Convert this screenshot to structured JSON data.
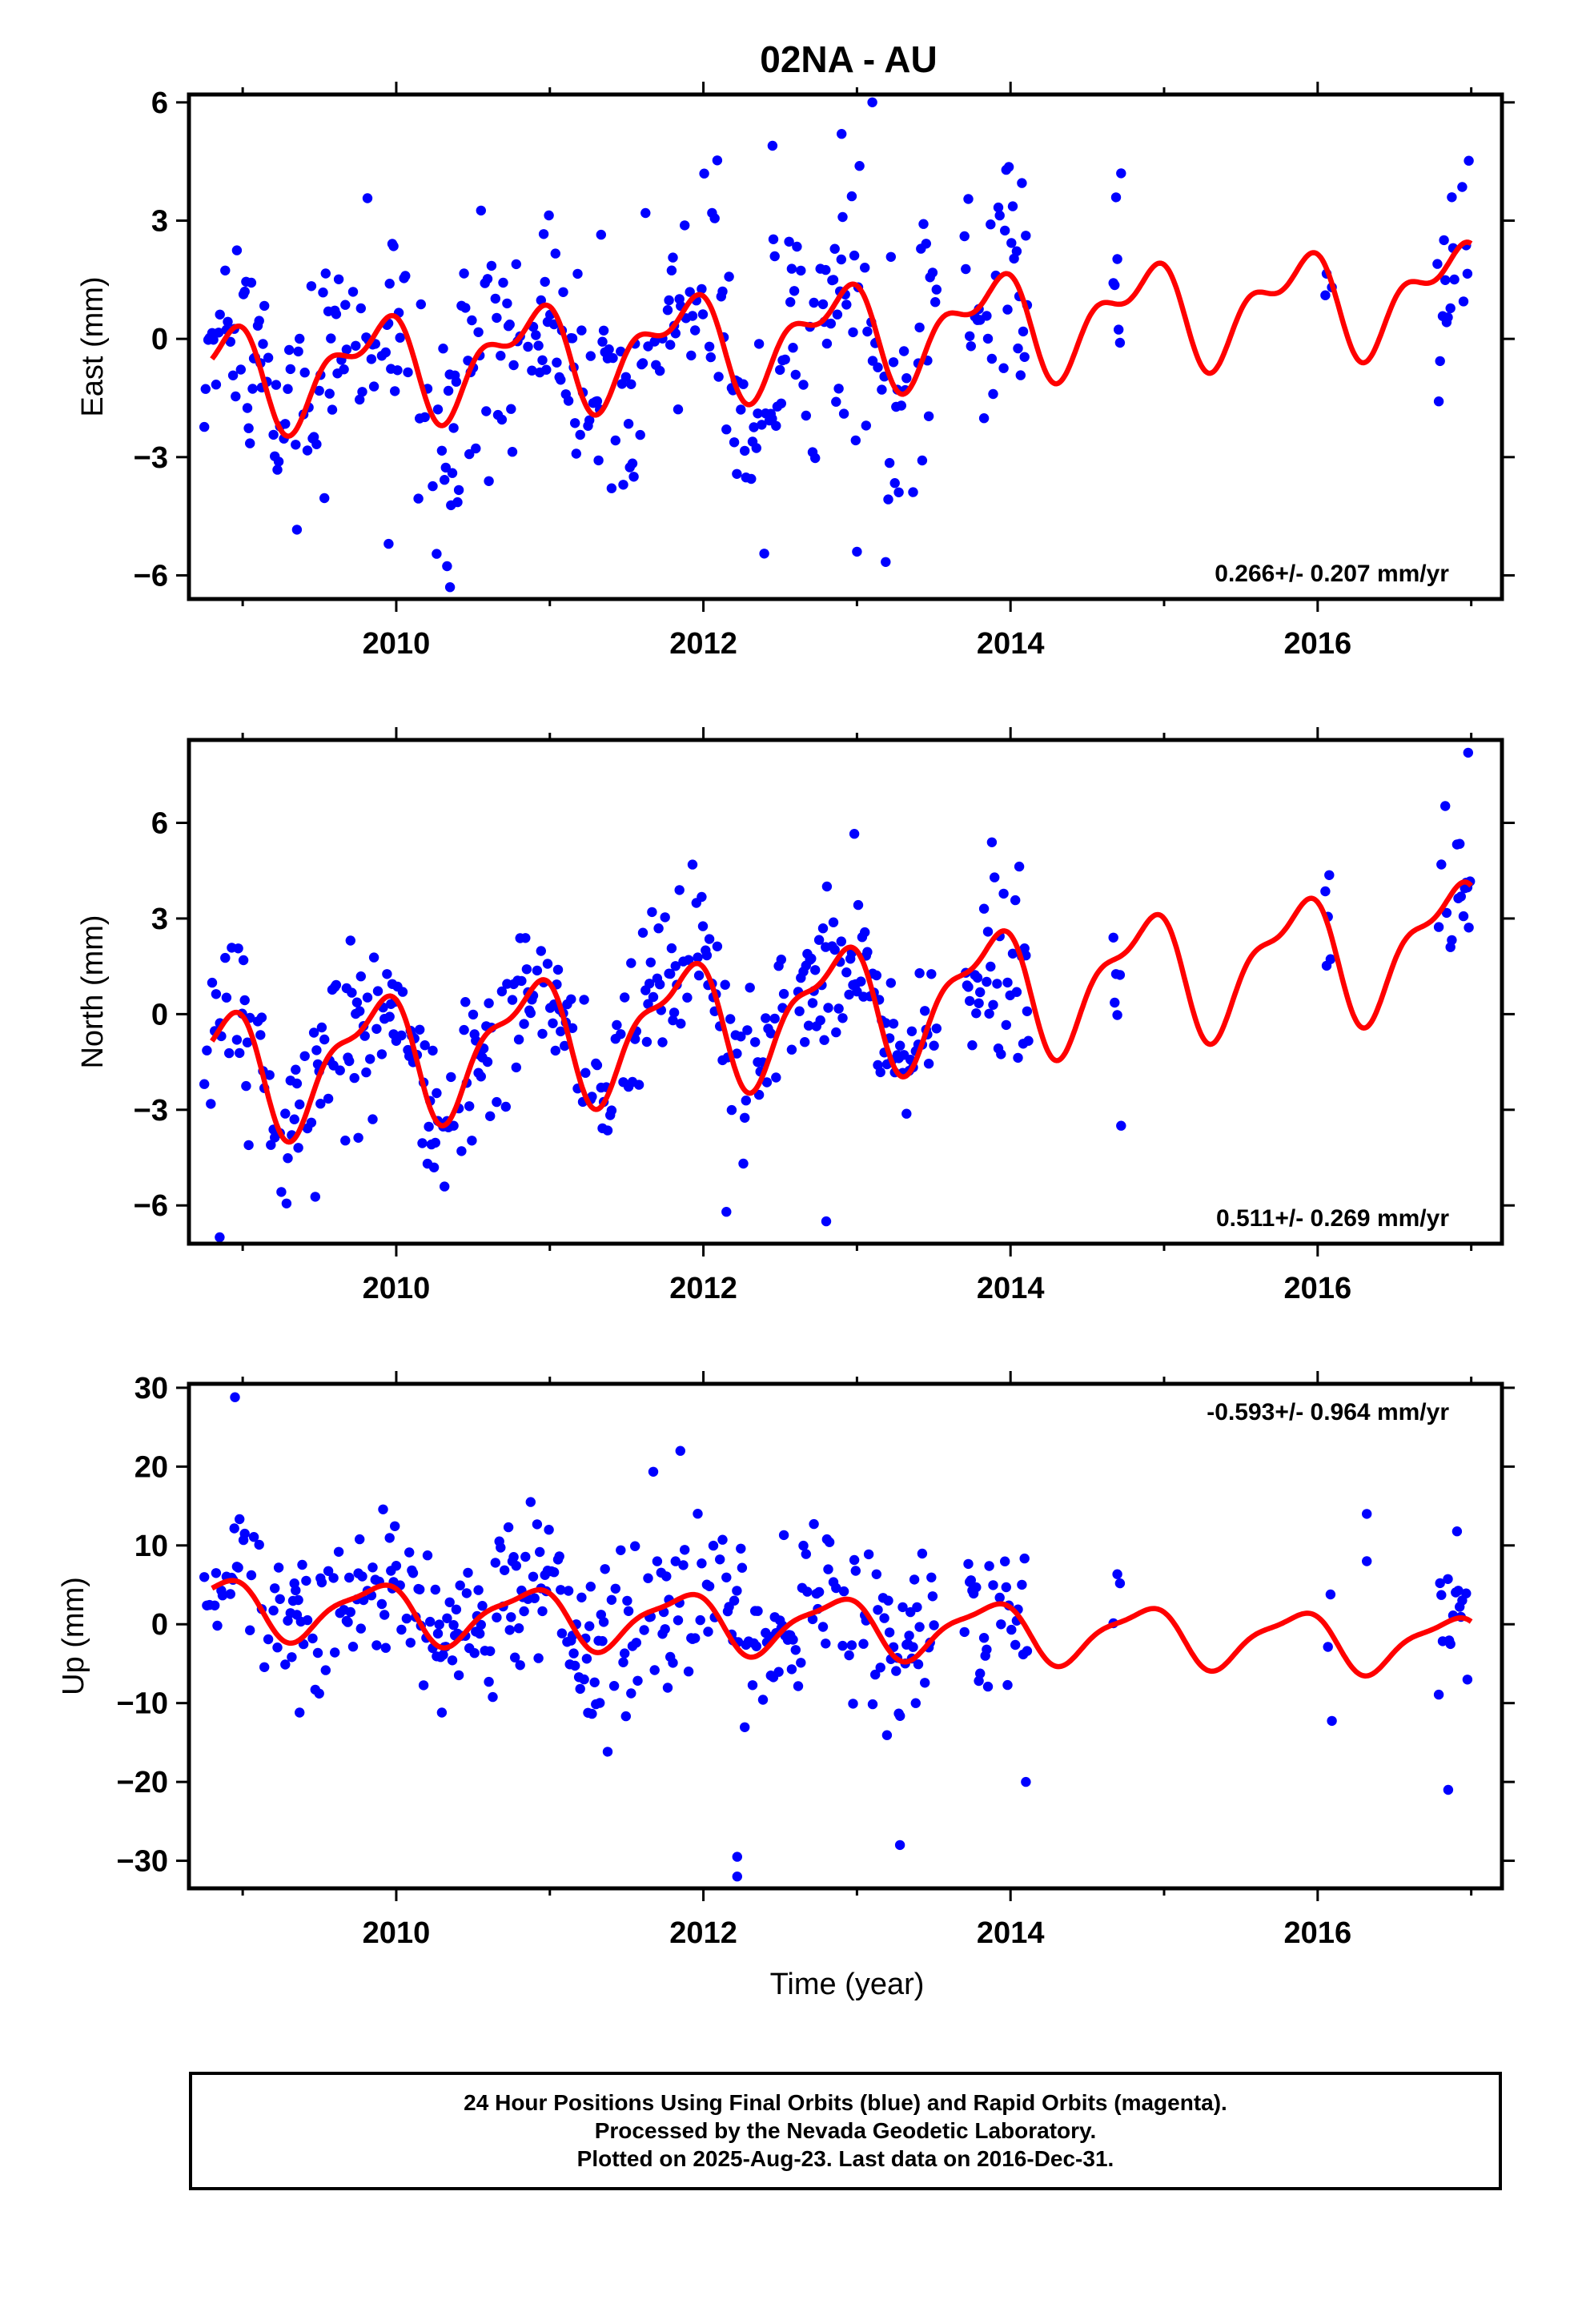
{
  "title": "02NA - AU",
  "xlabel": "Time (year)",
  "caption": [
    "24 Hour Positions Using Final Orbits (blue) and Rapid Orbits (magenta).",
    "Processed by the Nevada Geodetic Laboratory.",
    "Plotted on 2025-Aug-23. Last data on 2016-Dec-31."
  ],
  "colors": {
    "points": "#0000ff",
    "model": "#ff0000",
    "axes": "#000000"
  },
  "chart_data": [
    {
      "type": "scatter",
      "ylabel": "East (mm)",
      "rate_label": "0.266+/- 0.207 mm/yr",
      "rate_position": "bottom-right",
      "xlim": [
        2008.65,
        2017.2
      ],
      "ylim": [
        -6.6,
        6.2
      ],
      "xticks": [
        2010,
        2012,
        2014,
        2016
      ],
      "yticks": [
        -6,
        -3,
        0,
        3,
        6
      ],
      "ytick_labels": [
        "−6",
        "−3",
        "0",
        "3",
        "6"
      ],
      "rate_mm_per_yr": 0.266,
      "annual_amplitude_mm": 1.1,
      "semiannual_amplitude_mm": 0.6,
      "scatter_sigma_mm": 1.5,
      "observation_periods": [
        [
          2008.75,
          2013.52
        ],
        [
          2013.7,
          2014.12
        ],
        [
          2014.67,
          2014.72
        ],
        [
          2016.05,
          2016.1
        ],
        [
          2016.78,
          2017.0
        ]
      ],
      "outliers": [
        [
          2013.1,
          6.0
        ],
        [
          2012.9,
          5.2
        ],
        [
          2010.35,
          -6.3
        ],
        [
          2009.95,
          -5.2
        ],
        [
          2013.0,
          -5.4
        ],
        [
          2012.45,
          4.9
        ],
        [
          2014.72,
          4.2
        ]
      ],
      "series": [
        {
          "name": "Final Orbits",
          "color": "#0000ff",
          "kind": "points"
        },
        {
          "name": "model",
          "color": "#ff0000",
          "kind": "line"
        }
      ]
    },
    {
      "type": "scatter",
      "ylabel": "North (mm)",
      "rate_label": "0.511+/- 0.269 mm/yr",
      "rate_position": "bottom-right",
      "xlim": [
        2008.65,
        2017.2
      ],
      "ylim": [
        -7.2,
        8.6
      ],
      "xticks": [
        2010,
        2012,
        2014,
        2016
      ],
      "yticks": [
        -6,
        -3,
        0,
        3,
        6
      ],
      "ytick_labels": [
        "−6",
        "−3",
        "0",
        "3",
        "6"
      ],
      "rate_mm_per_yr": 0.511,
      "annual_amplitude_mm": 1.8,
      "semiannual_amplitude_mm": 0.7,
      "scatter_sigma_mm": 1.3,
      "observation_periods": [
        [
          2008.75,
          2013.52
        ],
        [
          2013.7,
          2014.12
        ],
        [
          2014.67,
          2014.72
        ],
        [
          2016.05,
          2016.1
        ],
        [
          2016.78,
          2017.0
        ]
      ],
      "outliers": [
        [
          2008.85,
          -7.0
        ],
        [
          2016.98,
          8.2
        ],
        [
          2012.8,
          -6.5
        ],
        [
          2012.15,
          -6.2
        ],
        [
          2014.72,
          -3.5
        ]
      ],
      "series": [
        {
          "name": "Final Orbits",
          "color": "#0000ff",
          "kind": "points"
        },
        {
          "name": "model",
          "color": "#ff0000",
          "kind": "line"
        }
      ]
    },
    {
      "type": "scatter",
      "ylabel": "Up (mm)",
      "rate_label": "-0.593+/- 0.964 mm/yr",
      "rate_position": "top-right",
      "xlim": [
        2008.65,
        2017.2
      ],
      "ylim": [
        -33.5,
        30.5
      ],
      "xticks": [
        2010,
        2012,
        2014,
        2016
      ],
      "yticks": [
        -30,
        -20,
        -10,
        0,
        10,
        20,
        30
      ],
      "ytick_labels": [
        "−30",
        "−20",
        "−10",
        "0",
        "10",
        "20",
        "30"
      ],
      "rate_mm_per_yr": -0.593,
      "annual_amplitude_mm": 3.5,
      "semiannual_amplitude_mm": 1.0,
      "scatter_sigma_mm": 5.0,
      "observation_periods": [
        [
          2008.75,
          2013.52
        ],
        [
          2013.7,
          2014.12
        ],
        [
          2014.67,
          2014.72
        ],
        [
          2016.05,
          2016.1
        ],
        [
          2016.78,
          2017.0
        ]
      ],
      "outliers": [
        [
          2008.95,
          28.8
        ],
        [
          2012.22,
          -32.0
        ],
        [
          2012.22,
          -29.5
        ],
        [
          2013.28,
          -28.0
        ],
        [
          2011.85,
          22.0
        ],
        [
          2016.85,
          -21.0
        ],
        [
          2014.1,
          -20.0
        ],
        [
          2016.32,
          14.0
        ],
        [
          2016.32,
          8.0
        ]
      ],
      "series": [
        {
          "name": "Final Orbits",
          "color": "#0000ff",
          "kind": "points"
        },
        {
          "name": "model",
          "color": "#ff0000",
          "kind": "line"
        }
      ]
    }
  ]
}
